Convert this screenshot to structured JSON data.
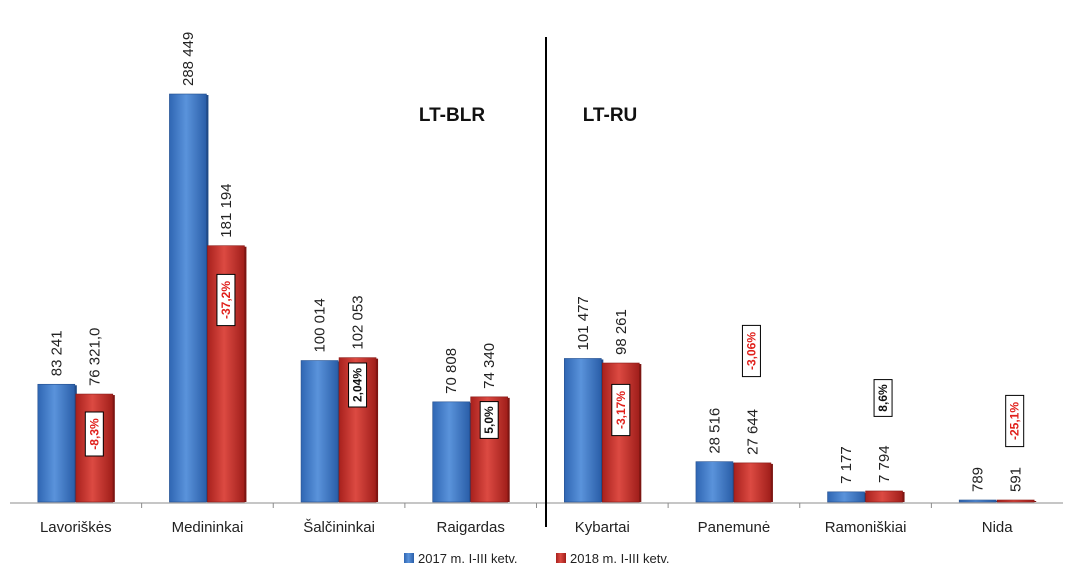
{
  "chart_data": {
    "type": "bar",
    "categories": [
      "Lavoriškės",
      "Medininkai",
      "Šalčininkai",
      "Raigardas",
      "Kybartai",
      "Panemunė",
      "Ramoniškiai",
      "Nida"
    ],
    "series": [
      {
        "name": "2017 m. I-III ketv.",
        "color": "#3a78c6",
        "values": [
          83241,
          288449,
          100014,
          70808,
          101477,
          28516,
          7177,
          789
        ],
        "labels": [
          "83 241",
          "288 449",
          "100 014",
          "70 808",
          "101 477",
          "28 516",
          "7 177",
          "789"
        ]
      },
      {
        "name": "2018 m. I-III ketv.",
        "color": "#c8332e",
        "values": [
          76321.0,
          181194,
          102053,
          74340,
          98261,
          27644,
          7794,
          591
        ],
        "labels": [
          "76 321,0",
          "181 194",
          "102 053",
          "74 340",
          "98 261",
          "27 644",
          "7 794",
          "591"
        ]
      }
    ],
    "changes": [
      "-8,3%",
      "-37,2%",
      "2,04%",
      "5,0%",
      "-3,17%",
      "-3,06%",
      "8,6%",
      "-25,1%"
    ],
    "change_colors": [
      "#e0201b",
      "#e0201b",
      "#111111",
      "#111111",
      "#e0201b",
      "#e0201b",
      "#111111",
      "#e0201b"
    ],
    "region_labels": [
      "LT-BLR",
      "LT-RU"
    ],
    "ylim": [
      0,
      288449
    ],
    "grid": false,
    "legend_position": "bottom"
  }
}
